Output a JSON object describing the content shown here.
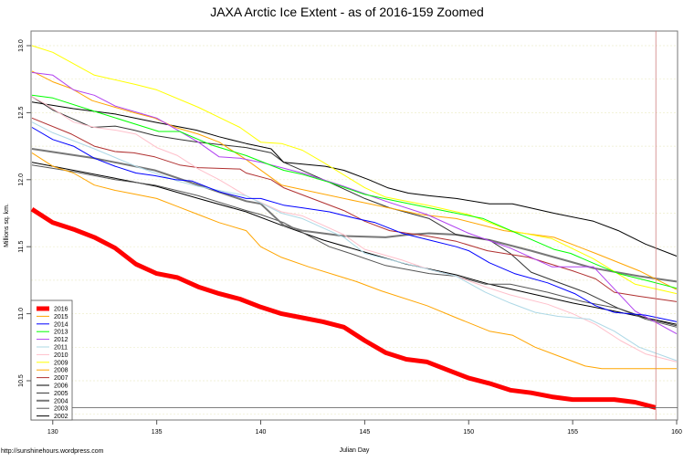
{
  "chart_data": {
    "type": "line",
    "title": "JAXA Arctic Ice Extent - as of 2016-159 Zoomed",
    "xlabel": "Julian Day",
    "ylabel": "Millions sq. km.",
    "xlim": [
      129,
      160
    ],
    "ylim": [
      10.21,
      13.11
    ],
    "xticks": [
      130,
      135,
      140,
      145,
      150,
      155,
      160
    ],
    "yticks": [
      "10.5",
      "11.0",
      "11.5",
      "12.0",
      "12.5",
      "13.0"
    ],
    "grid": "horizontal dotted",
    "legend": "bottom-left",
    "reference_lines": {
      "vertical_day": 159,
      "horizontal_value": 10.3
    },
    "credit": "http://sunshinehours.wordpress.com",
    "series": [
      {
        "name": "2016",
        "color": "#FF0000",
        "width": 5,
        "x": [
          129,
          130,
          131,
          132,
          133,
          134,
          135,
          136,
          137,
          138,
          139,
          140,
          141,
          142,
          143,
          144,
          145,
          146,
          147,
          148,
          149,
          150,
          151,
          152,
          153,
          154,
          155,
          156,
          157,
          158,
          159
        ],
        "y": [
          11.78,
          11.68,
          11.63,
          11.57,
          11.49,
          11.37,
          11.3,
          11.27,
          11.2,
          11.15,
          11.11,
          11.05,
          11.0,
          10.97,
          10.94,
          10.9,
          10.8,
          10.71,
          10.66,
          10.64,
          10.58,
          10.52,
          10.48,
          10.43,
          10.41,
          10.38,
          10.36,
          10.36,
          10.36,
          10.34,
          10.3
        ]
      },
      {
        "name": "2015",
        "color": "#FFA500",
        "width": 1,
        "x": [
          129,
          130,
          131,
          132,
          133,
          134,
          135,
          136,
          137,
          138,
          139.3,
          140,
          141,
          142.3,
          144.6,
          145.8,
          148,
          149.4,
          151,
          152.1,
          153.2,
          154.4,
          155.6,
          156.4,
          160
        ],
        "y": [
          12.2,
          12.1,
          12.05,
          11.96,
          11.92,
          11.89,
          11.86,
          11.8,
          11.74,
          11.68,
          11.62,
          11.5,
          11.42,
          11.35,
          11.24,
          11.17,
          11.06,
          10.97,
          10.87,
          10.84,
          10.75,
          10.68,
          10.61,
          10.59,
          10.59
        ]
      },
      {
        "name": "2014",
        "color": "#0000FF",
        "width": 1,
        "x": [
          129,
          130,
          131,
          132,
          133,
          134,
          134.9,
          135.9,
          136.7,
          138,
          139.3,
          140,
          141.1,
          142,
          143.3,
          144.6,
          145.5,
          146.8,
          148.1,
          149.4,
          150,
          151,
          152.2,
          153.8,
          155.1,
          156.1,
          157,
          158.5,
          160
        ],
        "y": [
          12.39,
          12.3,
          12.25,
          12.16,
          12.1,
          12.05,
          12.03,
          12.0,
          11.99,
          11.91,
          11.86,
          11.86,
          11.81,
          11.79,
          11.76,
          11.71,
          11.68,
          11.6,
          11.55,
          11.5,
          11.47,
          11.38,
          11.3,
          11.23,
          11.15,
          11.06,
          11.01,
          10.99,
          10.94
        ]
      },
      {
        "name": "2013",
        "color": "#00FF00",
        "width": 1,
        "x": [
          129,
          130,
          132,
          135.1,
          136.1,
          137.6,
          139.3,
          141.1,
          142,
          143.3,
          145,
          146.2,
          148.1,
          149.4,
          150.7,
          154.1,
          154.9,
          156.1,
          157.2,
          158.5,
          160
        ],
        "y": [
          12.63,
          12.61,
          12.51,
          12.36,
          12.36,
          12.26,
          12.18,
          12.07,
          12.04,
          11.98,
          11.89,
          11.85,
          11.79,
          11.75,
          11.71,
          11.48,
          11.45,
          11.37,
          11.3,
          11.25,
          11.19
        ]
      },
      {
        "name": "2012",
        "color": "#B040F0",
        "width": 1,
        "x": [
          129,
          130,
          131,
          132,
          133,
          135,
          137,
          138,
          139,
          140,
          142,
          144,
          146,
          148,
          150,
          152,
          154,
          156,
          158,
          160
        ],
        "y": [
          12.8,
          12.78,
          12.67,
          12.63,
          12.55,
          12.46,
          12.28,
          12.17,
          12.16,
          12.13,
          12.05,
          11.95,
          11.84,
          11.74,
          11.6,
          11.49,
          11.35,
          11.35,
          11.02,
          10.85
        ]
      },
      {
        "name": "2011",
        "color": "#ADD8E6",
        "width": 1,
        "x": [
          129,
          130,
          132,
          134,
          136,
          137,
          139.3,
          141,
          142,
          144,
          145,
          146.8,
          148.1,
          149.4,
          150.8,
          152,
          153.2,
          154.3,
          155.8,
          157,
          158.2,
          160
        ],
        "y": [
          12.43,
          12.35,
          12.23,
          12.1,
          11.99,
          11.95,
          11.88,
          11.75,
          11.71,
          11.57,
          11.45,
          11.38,
          11.33,
          11.28,
          11.16,
          11.08,
          11.01,
          10.98,
          10.96,
          10.87,
          10.75,
          10.65
        ]
      },
      {
        "name": "2010",
        "color": "#FFC0CB",
        "width": 1,
        "x": [
          129,
          129.7,
          131,
          132,
          133,
          134,
          135,
          136,
          137,
          138,
          139.3,
          141,
          142,
          144,
          145,
          146.8,
          148.1,
          149.4,
          150.8,
          152,
          153.8,
          155,
          156.1,
          157.3,
          158.5,
          160
        ],
        "y": [
          12.62,
          12.56,
          12.43,
          12.39,
          12.37,
          12.34,
          12.24,
          12.18,
          12.08,
          12.0,
          11.88,
          11.76,
          11.73,
          11.59,
          11.48,
          11.4,
          11.33,
          11.28,
          11.2,
          11.14,
          11.07,
          11.0,
          10.92,
          10.8,
          10.7,
          10.64
        ]
      },
      {
        "name": "2009",
        "color": "#FFFF00",
        "width": 1,
        "x": [
          129,
          130,
          132,
          134,
          135,
          137,
          139,
          140,
          141,
          142,
          143,
          145,
          146,
          148,
          150,
          152,
          154,
          156,
          158,
          160
        ],
        "y": [
          13.0,
          12.95,
          12.78,
          12.71,
          12.67,
          12.54,
          12.39,
          12.28,
          12.27,
          12.22,
          12.13,
          11.94,
          11.87,
          11.81,
          11.74,
          11.62,
          11.56,
          11.41,
          11.22,
          11.15
        ]
      },
      {
        "name": "2008",
        "color": "#FFA500",
        "width": 1,
        "x": [
          129,
          130,
          130.9,
          131.9,
          133,
          133.9,
          134.9,
          135.9,
          137,
          138,
          139.3,
          141,
          144.6,
          147.7,
          149.4,
          151.7,
          154.1,
          156.1,
          158.2,
          160
        ],
        "y": [
          12.81,
          12.73,
          12.68,
          12.59,
          12.54,
          12.5,
          12.46,
          12.39,
          12.34,
          12.28,
          12.15,
          11.96,
          11.84,
          11.74,
          11.71,
          11.62,
          11.57,
          11.45,
          11.32,
          11.18
        ]
      },
      {
        "name": "2007",
        "color": "#B03030",
        "width": 1,
        "x": [
          129,
          130.9,
          132,
          133,
          133.9,
          134.9,
          136.1,
          137,
          139,
          139.3,
          140.5,
          141.1,
          144,
          145,
          146.2,
          148,
          149.4,
          150.9,
          152.9,
          155,
          156.1,
          157,
          158.2,
          160
        ],
        "y": [
          12.46,
          12.34,
          12.25,
          12.21,
          12.2,
          12.17,
          12.11,
          12.09,
          12.08,
          12.05,
          12.0,
          11.94,
          11.77,
          11.69,
          11.62,
          11.58,
          11.54,
          11.47,
          11.42,
          11.32,
          11.26,
          11.16,
          11.13,
          11.09
        ]
      },
      {
        "name": "2006",
        "color": "#000000",
        "width": 1,
        "x": [
          129,
          131,
          133,
          134.9,
          136.9,
          138,
          139.3,
          140.5,
          141.1,
          143.1,
          144,
          145.2,
          146.1,
          147.1,
          148.1,
          149.4,
          151,
          152.1,
          154.1,
          156,
          157.2,
          158.5,
          160
        ],
        "y": [
          12.58,
          12.53,
          12.49,
          12.43,
          12.37,
          12.32,
          12.27,
          12.23,
          12.13,
          12.1,
          12.07,
          12.0,
          11.94,
          11.9,
          11.88,
          11.86,
          11.82,
          11.82,
          11.75,
          11.69,
          11.62,
          11.52,
          11.43
        ]
      },
      {
        "name": "2005",
        "color": "#333333",
        "width": 1,
        "x": [
          129,
          130,
          131.9,
          133,
          133.9,
          134.9,
          136.1,
          137,
          139.3,
          140.5,
          141.1,
          143.3,
          145,
          146.2,
          148.1,
          149.4,
          151,
          152,
          153,
          154.2,
          155.6,
          157.2,
          158.5,
          160
        ],
        "y": [
          12.62,
          12.52,
          12.39,
          12.4,
          12.37,
          12.33,
          12.3,
          12.28,
          12.24,
          12.2,
          12.13,
          11.98,
          11.86,
          11.79,
          11.71,
          11.59,
          11.55,
          11.45,
          11.31,
          11.24,
          11.16,
          11.04,
          10.97,
          10.91
        ]
      },
      {
        "name": "2004",
        "color": "#777777",
        "width": 2,
        "x": [
          129,
          132,
          134.9,
          137,
          139.3,
          140,
          141.1,
          142,
          144,
          146,
          147.1,
          148.1,
          149.4,
          151,
          153,
          156,
          158.2,
          160
        ],
        "y": [
          12.23,
          12.16,
          12.07,
          11.96,
          11.84,
          11.82,
          11.66,
          11.62,
          11.58,
          11.57,
          11.59,
          11.6,
          11.59,
          11.55,
          11.47,
          11.34,
          11.28,
          11.24
        ]
      },
      {
        "name": "2003",
        "color": "#555555",
        "width": 1,
        "x": [
          129,
          131,
          133,
          134.9,
          137,
          139.3,
          140,
          141.1,
          143.3,
          144.3,
          146,
          148.1,
          149.4,
          150.8,
          152,
          153.8,
          155.5,
          157.2,
          158.5,
          160
        ],
        "y": [
          12.11,
          12.06,
          12.0,
          11.96,
          11.88,
          11.77,
          11.74,
          11.68,
          11.5,
          11.45,
          11.36,
          11.3,
          11.28,
          11.22,
          11.22,
          11.16,
          11.09,
          11.04,
          10.96,
          10.9
        ]
      },
      {
        "name": "2002",
        "color": "#000000",
        "width": 1,
        "x": [
          129,
          131,
          133,
          135,
          137,
          139.3,
          141,
          143,
          145,
          147,
          149.4,
          151,
          153,
          155,
          157,
          158.5,
          160
        ],
        "y": [
          12.13,
          12.07,
          12.01,
          11.95,
          11.86,
          11.76,
          11.66,
          11.55,
          11.46,
          11.37,
          11.29,
          11.22,
          11.15,
          11.08,
          11.02,
          10.97,
          10.92
        ]
      }
    ]
  }
}
